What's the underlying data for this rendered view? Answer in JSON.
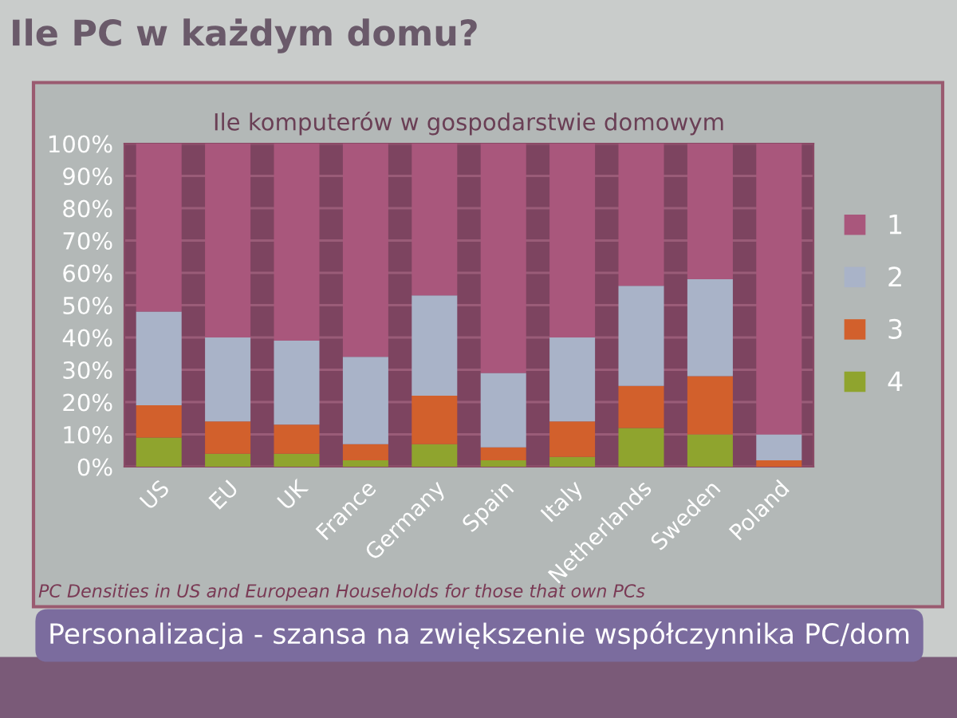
{
  "chart_data": {
    "type": "bar",
    "stacked": true,
    "title": "Ile PC w każdym domu?",
    "subtitle": "Ile komputerów w gospodarstwie domowym",
    "categories": [
      "US",
      "EU",
      "UK",
      "France",
      "Germany",
      "Spain",
      "Italy",
      "Netherlands",
      "Sweden",
      "Poland"
    ],
    "series": [
      {
        "name": "4",
        "color": "#8fa42e",
        "values": [
          9,
          4,
          4,
          2,
          7,
          2,
          3,
          12,
          10,
          0
        ]
      },
      {
        "name": "3",
        "color": "#d2602c",
        "values": [
          10,
          10,
          9,
          5,
          15,
          4,
          11,
          13,
          18,
          2
        ]
      },
      {
        "name": "2",
        "color": "#a9b3c8",
        "values": [
          29,
          26,
          26,
          27,
          31,
          23,
          26,
          31,
          30,
          8
        ]
      },
      {
        "name": "1",
        "color": "#a9577c",
        "values": [
          52,
          60,
          61,
          66,
          47,
          71,
          60,
          44,
          42,
          90
        ]
      }
    ],
    "ylim": [
      0,
      100
    ],
    "yticks": [
      {
        "value": 0,
        "label": "0%"
      },
      {
        "value": 10,
        "label": "10%"
      },
      {
        "value": 20,
        "label": "20%"
      },
      {
        "value": 30,
        "label": "30%"
      },
      {
        "value": 40,
        "label": "40%"
      },
      {
        "value": 50,
        "label": "50%"
      },
      {
        "value": 60,
        "label": "60%"
      },
      {
        "value": 70,
        "label": "70%"
      },
      {
        "value": 80,
        "label": "80%"
      },
      {
        "value": 90,
        "label": "90%"
      },
      {
        "value": 100,
        "label": "100%"
      }
    ],
    "bands": [
      {
        "axis": "y",
        "from": 0,
        "to": 100,
        "color": "#7d4460"
      }
    ],
    "grid": "y",
    "legend": "right",
    "annotations": [
      "PC Densities in US and European Households for those that own PCs",
      "Personalizacja - szansa na zwiększenie współczynnika PC/dom"
    ]
  }
}
